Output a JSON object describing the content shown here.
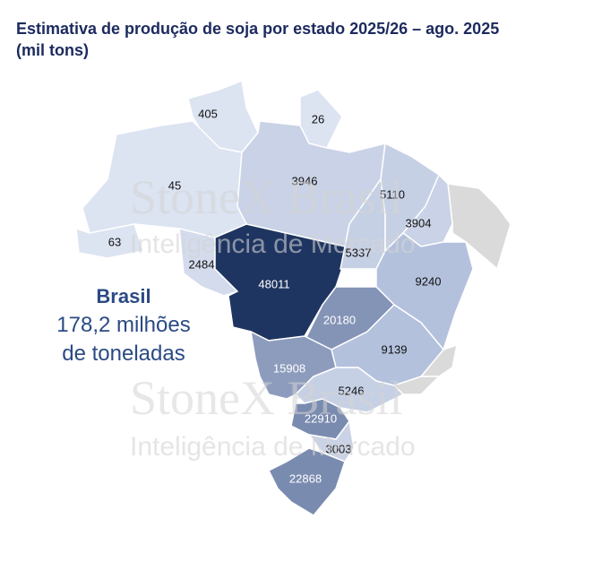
{
  "title": {
    "line1": "Estimativa de produção de soja por estado 2025/26 – ago. 2025",
    "line2": "(mil tons)"
  },
  "callout": {
    "heading": "Brasil",
    "line1": "178,2 milhões",
    "line2": "de toneladas"
  },
  "watermark": {
    "brand": "StoneX Brasil",
    "subtitle": "Inteligência de Mercado"
  },
  "regions": [
    {
      "value": 405,
      "color": "#dce3f1"
    },
    {
      "value": 26,
      "color": "#dce3f1"
    },
    {
      "value": 45,
      "color": "#dce3f1"
    },
    {
      "value": 63,
      "color": "#dce3f1"
    },
    {
      "value": 2484,
      "color": "#d3dbec"
    },
    {
      "value": 3946,
      "color": "#c9d2e6"
    },
    {
      "value": 48011,
      "color": "#1f3561"
    },
    {
      "value": 5337,
      "color": "#c6d0e5"
    },
    {
      "value": 5110,
      "color": "#c6d0e5"
    },
    {
      "value": 3904,
      "color": "#c9d2e6"
    },
    {
      "value": 9240,
      "color": "#b3c1dd"
    },
    {
      "value": 20180,
      "color": "#8494b7"
    },
    {
      "value": 9139,
      "color": "#b3c1dd"
    },
    {
      "value": 15908,
      "color": "#8d9cbd"
    },
    {
      "value": 5246,
      "color": "#c6d0e5"
    },
    {
      "value": 22910,
      "color": "#7a8bb0"
    },
    {
      "value": 3003,
      "color": "#c9d2e6"
    },
    {
      "value": 22868,
      "color": "#7a8bb0"
    }
  ]
}
